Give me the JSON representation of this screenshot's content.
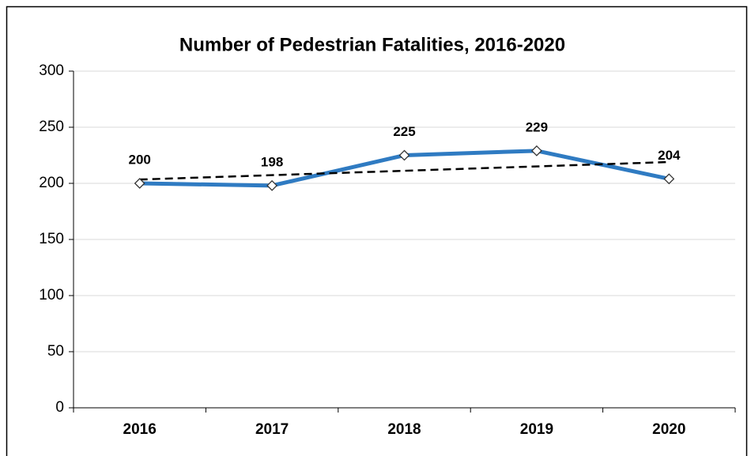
{
  "chart_data": {
    "type": "line",
    "title": "Number of Pedestrian Fatalities, 2016-2020",
    "categories": [
      "2016",
      "2017",
      "2018",
      "2019",
      "2020"
    ],
    "series": [
      {
        "values": [
          200,
          198,
          225,
          229,
          204
        ],
        "color": "#2f7bc2"
      }
    ],
    "ylim": [
      0,
      300
    ],
    "yticks": [
      0,
      50,
      100,
      150,
      200,
      250,
      300
    ],
    "grid": true,
    "trendline": "linear",
    "data_labels": true
  }
}
